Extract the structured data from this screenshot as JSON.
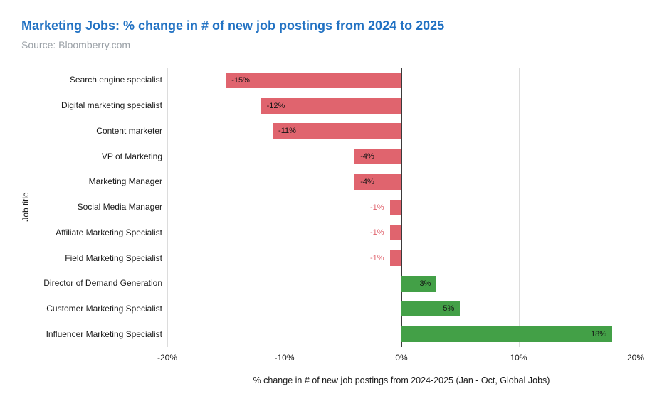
{
  "header": {
    "title": "Marketing Jobs: % change in # of new job postings from 2024 to 2025",
    "subtitle": "Source: Bloomberry.com"
  },
  "chart_data": {
    "type": "bar",
    "orientation": "horizontal",
    "title": "Marketing Jobs: % change in # of new job postings from 2024 to 2025",
    "subtitle": "Source: Bloomberry.com",
    "categories": [
      "Search engine specialist",
      "Digital marketing specialist",
      "Content marketer",
      "VP of Marketing",
      "Marketing Manager",
      "Social Media Manager",
      "Affiliate Marketing Specialist",
      "Field Marketing Specialist",
      "Director of Demand Generation",
      "Customer Marketing Specialist",
      "Influencer Marketing Specialist"
    ],
    "values": [
      -15,
      -12,
      -11,
      -4,
      -4,
      -1,
      -1,
      -1,
      3,
      5,
      18
    ],
    "labels": [
      "-15%",
      "-12%",
      "-11%",
      "-4%",
      "-4%",
      "-1%",
      "-1%",
      "-1%",
      "3%",
      "5%",
      "18%"
    ],
    "xlabel": "% change in # of new job postings from 2024-2025 (Jan - Oct, Global Jobs)",
    "ylabel": "Job title",
    "xlim": [
      -20,
      20
    ],
    "xticks": [
      -20,
      -10,
      0,
      10,
      20
    ],
    "xtick_labels": [
      "-20%",
      "-10%",
      "0%",
      "10%",
      "20%"
    ],
    "grid": true,
    "legend": false,
    "colors": {
      "negative": "#e0646e",
      "positive": "#43a047",
      "outside_label": "#e0646e",
      "title": "#2272c3",
      "subtitle": "#9aa0a6"
    }
  }
}
